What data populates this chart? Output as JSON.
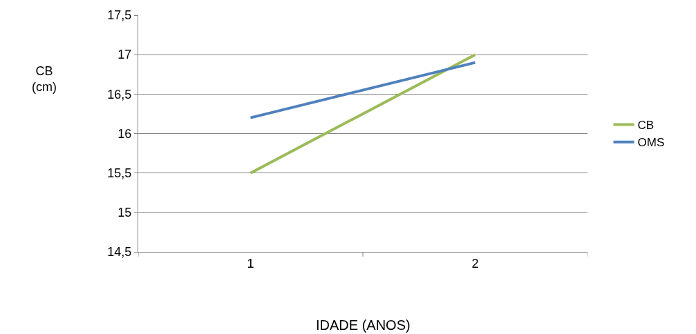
{
  "chart_data": {
    "type": "line",
    "xlabel": "IDADE (ANOS)",
    "ylabel": "CB\n(cm)",
    "categories": [
      "1",
      "2"
    ],
    "series": [
      {
        "name": "CB",
        "color": "#9bbb59",
        "values": [
          15.5,
          17.0
        ]
      },
      {
        "name": "OMS",
        "color": "#4f81bd",
        "values": [
          16.2,
          16.9
        ]
      }
    ],
    "ylim": [
      14.5,
      17.5
    ],
    "yticks": [
      {
        "value": 14.5,
        "label": "14,5"
      },
      15,
      {
        "value": 15.5,
        "label": "15,5"
      },
      16,
      {
        "value": 16.5,
        "label": "16,5"
      },
      17,
      {
        "value": 17.5,
        "label": "17,5"
      }
    ],
    "grid": "y",
    "legend": "right",
    "marker": "none",
    "line_style": "solid"
  }
}
